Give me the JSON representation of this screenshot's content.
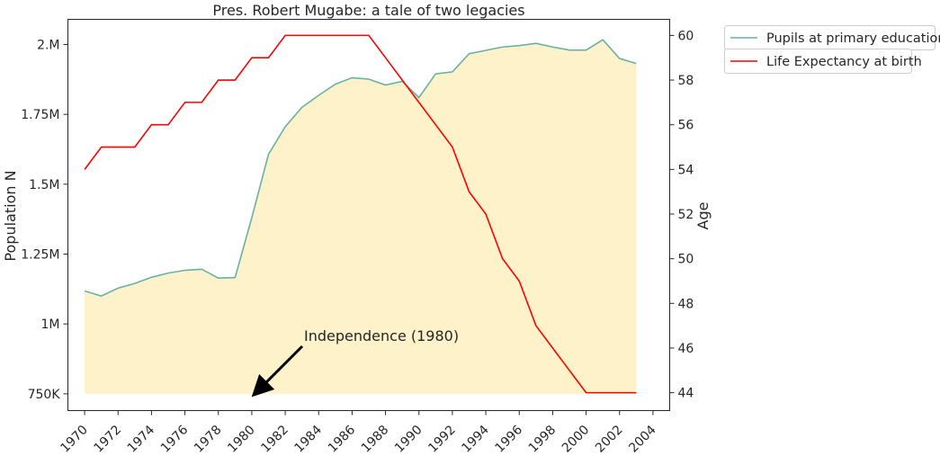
{
  "chart_data": {
    "type": "line",
    "title": "Pres. Robert Mugabe: a tale of two legacies",
    "ylabel": "Population N",
    "y2label": "Age",
    "xlim": [
      1969,
      2005
    ],
    "ylim": [
      690000,
      2090000
    ],
    "y2lim": [
      43.2,
      60.72
    ],
    "xticks": [
      1970,
      1972,
      1974,
      1976,
      1978,
      1980,
      1982,
      1984,
      1986,
      1988,
      1990,
      1992,
      1994,
      1996,
      1998,
      2000,
      2002,
      2004
    ],
    "xtick_labels": [
      "1970",
      "1972",
      "1974",
      "1976",
      "1978",
      "1980",
      "1982",
      "1984",
      "1986",
      "1988",
      "1990",
      "1992",
      "1994",
      "1996",
      "1998",
      "2000",
      "2002",
      "2004"
    ],
    "yticks": [
      750000,
      1000000,
      1250000,
      1500000,
      1750000,
      2000000
    ],
    "ytick_labels": [
      "750K",
      "1M",
      "1.25M",
      "1.5M",
      "1.75M",
      "2.M"
    ],
    "y2ticks": [
      44,
      46,
      48,
      50,
      52,
      54,
      56,
      58,
      60
    ],
    "y2tick_labels": [
      "44",
      "46",
      "48",
      "50",
      "52",
      "54",
      "56",
      "58",
      "60"
    ],
    "x": [
      1970,
      1971,
      1972,
      1973,
      1974,
      1975,
      1976,
      1977,
      1978,
      1979,
      1980,
      1981,
      1982,
      1983,
      1984,
      1985,
      1986,
      1987,
      1988,
      1989,
      1990,
      1991,
      1992,
      1993,
      1994,
      1995,
      1996,
      1997,
      1998,
      1999,
      2000,
      2001,
      2002,
      2003
    ],
    "series": [
      {
        "name": "Pupils at primary education",
        "axis": "left",
        "color": "#6ab0a5",
        "fill_color": "#fdf2c9",
        "fill_base": 750000,
        "values": [
          1118000,
          1100000,
          1128000,
          1145000,
          1167000,
          1182000,
          1192000,
          1196000,
          1164000,
          1166000,
          1380000,
          1607000,
          1706000,
          1775000,
          1818000,
          1858000,
          1881000,
          1876000,
          1855000,
          1868000,
          1810000,
          1895000,
          1902000,
          1967000,
          1979000,
          1991000,
          1996000,
          2004000,
          1991000,
          1980000,
          1980000,
          2017000,
          1950000,
          1932000
        ]
      },
      {
        "name": "Life Expectancy at birth",
        "axis": "right",
        "color": "#ff0000",
        "values": [
          54,
          55,
          55,
          55,
          56,
          56,
          57,
          57,
          58,
          58,
          59,
          59,
          60,
          60,
          60,
          60,
          60,
          60,
          59,
          58,
          57,
          56,
          55,
          53,
          52,
          50,
          49,
          47,
          46,
          45,
          44,
          44,
          44,
          44
        ]
      }
    ],
    "legend": {
      "placement": "outside-top-right",
      "entries": [
        "Pupils at primary education",
        "Life Expectancy at birth"
      ]
    },
    "annotation": {
      "text": "Independence (1980)",
      "arrow_target": {
        "x": 1980,
        "y": 720000
      }
    },
    "grid": false
  }
}
